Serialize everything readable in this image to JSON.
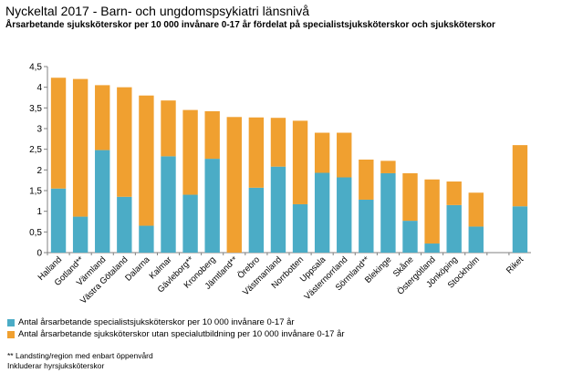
{
  "title": "Nyckeltal 2017 - Barn- och ungdomspsykiatri länsnivå",
  "subtitle": "Årsarbetande sjuksköterskor per 10 000 invånare 0-17 år fördelat på specialistsjuksköterskor och sjuksköterskor",
  "colors": {
    "specialist": "#4bacc6",
    "other": "#f0a030",
    "axis": "#808080",
    "grid": "#d9d9d9"
  },
  "legend": [
    "Antal årsarbetande specialistsjuksköterskor per 10 000 invånare 0-17 år",
    "Antal årsarbetande sjuksköterskor utan specialutbildning per 10 000 invånare 0-17 år"
  ],
  "footnotes": [
    "** Landsting/region med enbart öppenvård",
    "Inkluderar hyrsjuksköterskor"
  ],
  "chart_data": {
    "type": "bar",
    "stacked": true,
    "categories": [
      "Halland",
      "Gotland**",
      "Värmland",
      "Västra Götaland",
      "Dalarna",
      "Kalmar",
      "Gävleborg**",
      "Kronoberg",
      "Jämtland**",
      "Örebro",
      "Västmanland",
      "Norrbotten",
      "Uppsala",
      "Västernorrland",
      "Sörmland**",
      "Blekinge",
      "Skåne",
      "Östergötland",
      "Jönköping",
      "Stockholm",
      "",
      "Riket"
    ],
    "series": [
      {
        "name": "Antal årsarbetande specialistsjuksköterskor per 10 000 invånare 0-17 år",
        "values": [
          1.55,
          0.87,
          2.48,
          1.35,
          0.65,
          2.33,
          1.4,
          2.27,
          0,
          1.57,
          2.08,
          1.17,
          1.93,
          1.82,
          1.28,
          1.92,
          0.77,
          0.22,
          1.15,
          0.63,
          null,
          1.12
        ]
      },
      {
        "name": "Antal årsarbetande sjuksköterskor utan specialutbildning per 10 000 invånare 0-17 år",
        "values": [
          2.68,
          3.33,
          1.57,
          2.65,
          3.15,
          1.35,
          2.05,
          1.15,
          3.28,
          1.7,
          1.18,
          2.02,
          0.97,
          1.08,
          0.97,
          0.3,
          1.15,
          1.55,
          0.57,
          0.82,
          null,
          1.48
        ]
      }
    ],
    "ylim": [
      0,
      4.5
    ],
    "yticks": [
      "0",
      "0,5",
      "1",
      "1,5",
      "2",
      "2,5",
      "3",
      "3,5",
      "4",
      "4,5"
    ],
    "grid": false,
    "legend_position": "bottom-left"
  }
}
